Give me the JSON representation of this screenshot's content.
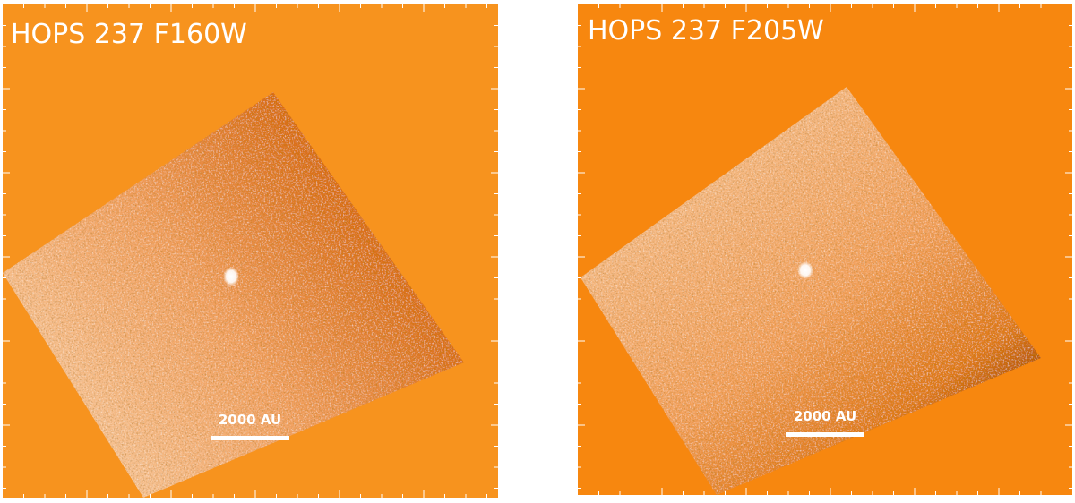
{
  "panels": [
    {
      "title": "HOPS 237 F160W",
      "scale_bar_label": "2000 AU"
    },
    {
      "title": "HOPS 237 F205W",
      "scale_bar_label": "2000 AU"
    }
  ]
}
